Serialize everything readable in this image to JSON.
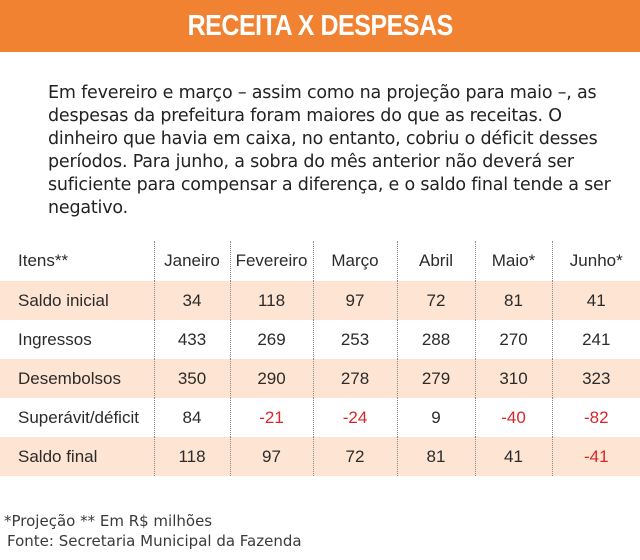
{
  "title": "RECEITA X DESPESAS",
  "intro": "Em fevereiro e março – assim como na projeção para maio –, as despesas da prefeitura foram maiores do que as receitas. O dinheiro que havia em caixa, no entanto, cobriu o déficit desses períodos. Para junho, a sobra do mês anterior não deverá ser suficiente para compensar a diferença, e o saldo final tende a ser negativo.",
  "table": {
    "columns": [
      "Itens**",
      "Janeiro",
      "Fevereiro",
      "Março",
      "Abril",
      "Maio*",
      "Junho*"
    ],
    "rows": [
      {
        "label": "Saldo inicial",
        "values": [
          "34",
          "118",
          "97",
          "72",
          "81",
          "41"
        ]
      },
      {
        "label": "Ingressos",
        "values": [
          "433",
          "269",
          "253",
          "288",
          "270",
          "241"
        ]
      },
      {
        "label": "Desembolsos",
        "values": [
          "350",
          "290",
          "278",
          "279",
          "310",
          "323"
        ]
      },
      {
        "label": "Superávit/déficit",
        "values": [
          "84",
          "-21",
          "-24",
          "9",
          "-40",
          "-82"
        ]
      },
      {
        "label": "Saldo final",
        "values": [
          "118",
          "97",
          "72",
          "81",
          "41",
          "-41"
        ]
      }
    ]
  },
  "footnote": {
    "note": "*Projeção ** Em R$ milhões",
    "source": "Fonte: Secretaria Municipal da Fazenda"
  },
  "colors": {
    "header": "#f08232",
    "shaded_row": "#fde4d3",
    "negative": "#d9262b"
  }
}
